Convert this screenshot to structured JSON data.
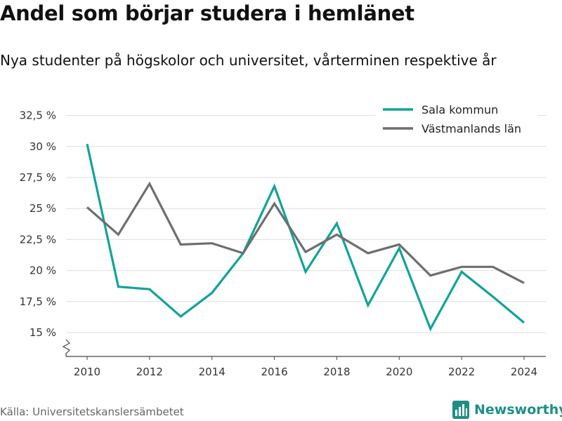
{
  "title": "Andel som börjar studera i hemlänet",
  "subtitle": "Nya studenter på högskolor och universitet, vårterminen respektive år",
  "source": "Källa: Universitetskanslersämbetet",
  "brand": "Newsworthy",
  "colors": {
    "sala": "#12a39a",
    "vastmanland": "#6e6e6e",
    "grid": "#dddddd",
    "axis": "#444444",
    "brand": "#1f8f86"
  },
  "chart_data": {
    "type": "line",
    "x": [
      2010,
      2011,
      2012,
      2013,
      2014,
      2015,
      2016,
      2017,
      2018,
      2019,
      2020,
      2021,
      2022,
      2023,
      2024
    ],
    "series": [
      {
        "name": "Sala kommun",
        "color": "#12a39a",
        "values": [
          30.2,
          18.7,
          18.5,
          16.3,
          18.2,
          21.4,
          26.8,
          19.9,
          23.8,
          17.2,
          21.8,
          15.3,
          19.9,
          17.9,
          15.8
        ]
      },
      {
        "name": "Västmanlands län",
        "color": "#6e6e6e",
        "values": [
          25.1,
          22.9,
          27.0,
          22.1,
          22.2,
          21.4,
          25.4,
          21.5,
          22.9,
          21.4,
          22.1,
          19.6,
          20.3,
          20.3,
          19.0
        ]
      }
    ],
    "y_ticks": [
      15,
      17.5,
      20,
      22.5,
      25,
      27.5,
      30,
      32.5
    ],
    "y_tick_labels": [
      "15 %",
      "17,5 %",
      "20 %",
      "22,5 %",
      "25 %",
      "27,5 %",
      "30 %",
      "32,5 %"
    ],
    "x_ticks": [
      2010,
      2012,
      2014,
      2016,
      2018,
      2020,
      2022,
      2024
    ],
    "x_tick_labels": [
      "2010",
      "2012",
      "2014",
      "2016",
      "2018",
      "2020",
      "2022",
      "2024"
    ],
    "ylim": [
      15,
      32.5
    ],
    "xlim": [
      2010,
      2024
    ],
    "y_axis_break": true,
    "grid": true,
    "legend_position": "top-right"
  }
}
